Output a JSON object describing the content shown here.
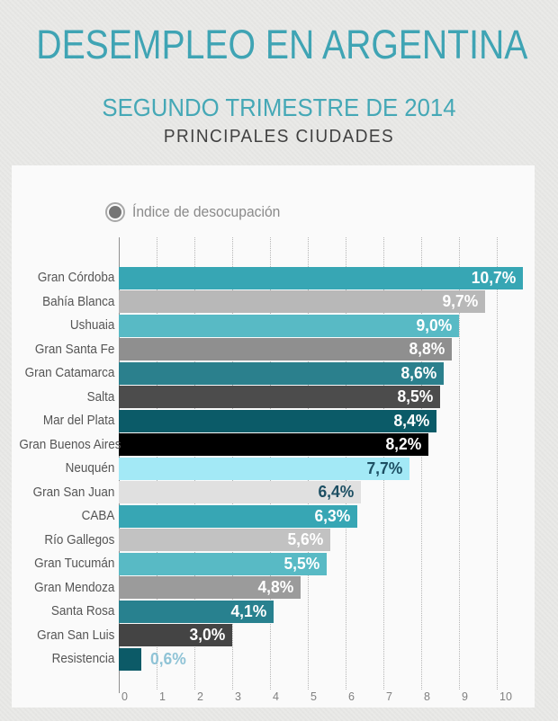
{
  "header": {
    "title": "DESEMPLEO EN ARGENTINA",
    "subtitle": "SEGUNDO TRIMESTRE DE 2014",
    "caption": "PRINCIPALES CIUDADES"
  },
  "legend": {
    "label": "Índice de desocupación"
  },
  "colors": {
    "accent_teal": "#3fa4b4",
    "caption_text": "#414141",
    "panel_background": "#fafafa",
    "page_background": "#e9e9e7",
    "grid_line": "#b5b5b5",
    "axis_line": "#8f8f8f",
    "city_label_text": "#555555",
    "axis_tick_text": "#808080",
    "legend_text": "#8a8a8a",
    "legend_marker": "#757575"
  },
  "chart_data": {
    "type": "bar",
    "orientation": "horizontal",
    "title": "DESEMPLEO EN ARGENTINA",
    "subtitle": "SEGUNDO TRIMESTRE DE 2014",
    "caption": "PRINCIPALES CIUDADES",
    "legend": [
      "Índice de desocupación"
    ],
    "legend_position": "top-left",
    "grid": "vertical-dotted",
    "xlim": [
      0,
      10
    ],
    "x_ticks": [
      "0",
      "1",
      "2",
      "3",
      "4",
      "5",
      "6",
      "7",
      "8",
      "9",
      "10"
    ],
    "categories": [
      "Gran Córdoba",
      "Bahía Blanca",
      "Ushuaia",
      "Gran Santa Fe",
      "Gran Catamarca",
      "Salta",
      "Mar del Plata",
      "Gran Buenos Aires",
      "Neuquén",
      "Gran San Juan",
      "CABA",
      "Río Gallegos",
      "Gran Tucumán",
      "Gran Mendoza",
      "Santa Rosa",
      "Gran San Luis",
      "Resistencia"
    ],
    "values": [
      10.7,
      9.7,
      9.0,
      8.8,
      8.6,
      8.5,
      8.4,
      8.2,
      7.7,
      6.4,
      6.3,
      5.6,
      5.5,
      4.8,
      4.1,
      3.0,
      0.6
    ],
    "value_labels": [
      "10,7%",
      "9,7%",
      "9,0%",
      "8,8%",
      "8,6%",
      "8,5%",
      "8,4%",
      "8,2%",
      "7,7%",
      "6,4%",
      "6,3%",
      "5,6%",
      "5,5%",
      "4,8%",
      "4,1%",
      "3,0%",
      "0,6%"
    ],
    "bar_colors": [
      "#37a6b4",
      "#b8b8b8",
      "#58bac5",
      "#8f8f8f",
      "#2b808d",
      "#4c4c4c",
      "#0b5b68",
      "#000000",
      "#a3e9f6",
      "#e0e0e0",
      "#37a6b4",
      "#c2c2c2",
      "#58bac5",
      "#9b9b9b",
      "#28818f",
      "#444444",
      "#0c5a67"
    ],
    "value_label_colors": [
      "#ffffff",
      "#ffffff",
      "#ffffff",
      "#ffffff",
      "#ffffff",
      "#ffffff",
      "#ffffff",
      "#ffffff",
      "#1d4f63",
      "#1d4f63",
      "#ffffff",
      "#ffffff",
      "#ffffff",
      "#ffffff",
      "#ffffff",
      "#ffffff",
      "#8fc3d6"
    ],
    "value_label_inside": [
      true,
      true,
      true,
      true,
      true,
      true,
      true,
      true,
      true,
      true,
      true,
      true,
      true,
      true,
      true,
      true,
      false
    ]
  }
}
